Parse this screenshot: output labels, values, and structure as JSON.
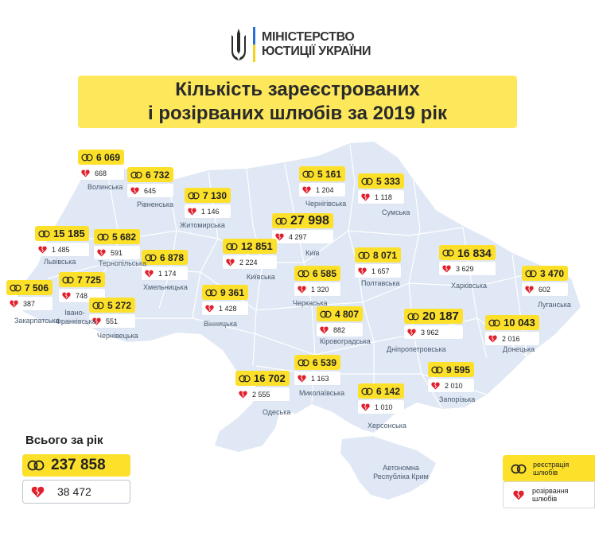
{
  "header": {
    "ministry_line1": "МІНІСТЕРСТВО",
    "ministry_line2": "ЮСТИЦІЇ УКРАЇНИ",
    "title_line1": "Кількість зареєстрованих",
    "title_line2": "і розірваних шлюбів за 2019 рік"
  },
  "colors": {
    "badge_yellow": "#fde02a",
    "title_band": "#fde85c",
    "map_fill": "#dfe8f4",
    "heart_red": "#e0202c"
  },
  "icons": {
    "registration": "rings-icon",
    "divorce": "broken-heart-icon"
  },
  "regions": [
    {
      "name": "Волинська",
      "registered": "6 069",
      "divorced": "668"
    },
    {
      "name": "Рівненська",
      "registered": "6 732",
      "divorced": "645"
    },
    {
      "name": "Житомирська",
      "registered": "7 130",
      "divorced": "1 146"
    },
    {
      "name": "Чернігівська",
      "registered": "5 161",
      "divorced": "1 204"
    },
    {
      "name": "Сумська",
      "registered": "5 333",
      "divorced": "1 118"
    },
    {
      "name": "Київ",
      "registered": "27 998",
      "divorced": "4 297"
    },
    {
      "name": "Львівська",
      "registered": "15 185",
      "divorced": "1 485"
    },
    {
      "name": "Тернопільська",
      "registered": "5 682",
      "divorced": "591"
    },
    {
      "name": "Хмельницька",
      "registered": "6 878",
      "divorced": "1 174"
    },
    {
      "name": "Київська",
      "registered": "12 851",
      "divorced": "2 224"
    },
    {
      "name": "Полтавська",
      "registered": "8 071",
      "divorced": "1 657"
    },
    {
      "name": "Харківська",
      "registered": "16 834",
      "divorced": "3 629"
    },
    {
      "name": "Закарпатська",
      "registered": "7 506",
      "divorced": "387"
    },
    {
      "name": "Івано-Франківська",
      "registered": "7 725",
      "divorced": "748"
    },
    {
      "name": "Чернівецька",
      "registered": "5 272",
      "divorced": "551"
    },
    {
      "name": "Вінницька",
      "registered": "9 361",
      "divorced": "1 428"
    },
    {
      "name": "Черкаська",
      "registered": "6 585",
      "divorced": "1 320"
    },
    {
      "name": "Луганська",
      "registered": "3 470",
      "divorced": "602"
    },
    {
      "name": "Кіровоградська",
      "registered": "4 807",
      "divorced": "882"
    },
    {
      "name": "Дніпропетровська",
      "registered": "20 187",
      "divorced": "3 962"
    },
    {
      "name": "Донецька",
      "registered": "10 043",
      "divorced": "2 016"
    },
    {
      "name": "Миколаївська",
      "registered": "6 539",
      "divorced": "1 163"
    },
    {
      "name": "Запорізька",
      "registered": "9 595",
      "divorced": "2 010"
    },
    {
      "name": "Одеська",
      "registered": "16 702",
      "divorced": "2 555"
    },
    {
      "name": "Херсонська",
      "registered": "6 142",
      "divorced": "1 010"
    },
    {
      "name": "Автономна Республіка Крим",
      "registered": null,
      "divorced": null
    }
  ],
  "totals": {
    "label": "Всього за рік",
    "registered": "237 858",
    "divorced": "38 472"
  },
  "legend": {
    "registration": "реєстрація шлюбів",
    "divorce": "розірвання шлюбів"
  }
}
